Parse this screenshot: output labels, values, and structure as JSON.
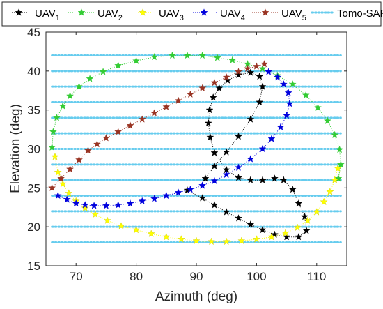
{
  "chart_data": {
    "type": "scatter",
    "xlabel": "Azimuth (deg)",
    "ylabel": "Elevation (deg)",
    "xlim": [
      65,
      115
    ],
    "ylim": [
      15,
      45
    ],
    "xticks": [
      "70",
      "80",
      "90",
      "100",
      "110"
    ],
    "yticks": [
      "15",
      "20",
      "25",
      "30",
      "35",
      "40",
      "45"
    ],
    "grid": false,
    "legend_placement": "top (outside, above plot)",
    "tomo_sar": {
      "name": "Tomo-SAR",
      "color": "#66ccee",
      "x_range": [
        66,
        114
      ],
      "y_levels": [
        18,
        20,
        22,
        24,
        26,
        28,
        30,
        32,
        34,
        36,
        38,
        40,
        42
      ]
    },
    "series": [
      {
        "name": "UAV",
        "sub": "1",
        "color": "#000000",
        "x": [
          88.5,
          91,
          93,
          95,
          97,
          99,
          101,
          103,
          105,
          107,
          108.3,
          108,
          107,
          106,
          104.5,
          103,
          101,
          99,
          97,
          95,
          93,
          92.3,
          92,
          92.2,
          92.8,
          93.8,
          95.2,
          97,
          99,
          100.5,
          101,
          100.5,
          99,
          97,
          95,
          93,
          91.5
        ],
        "y": [
          24.7,
          23.7,
          22.8,
          21.9,
          21.1,
          20.3,
          19.6,
          19.0,
          18.7,
          18.7,
          19.5,
          21.3,
          23.0,
          24.8,
          26.0,
          26.2,
          26.0,
          26.0,
          26.3,
          27.3,
          29.5,
          31.5,
          33.3,
          35.0,
          36.6,
          37.8,
          38.8,
          39.5,
          39.8,
          39.3,
          38.0,
          36.0,
          33.8,
          31.6,
          29.6,
          27.8,
          26.2
        ]
      },
      {
        "name": "UAV",
        "sub": "2",
        "color": "#33cc33",
        "x": [
          66,
          66.2,
          66.8,
          67.8,
          69,
          70.5,
          72.3,
          74.5,
          77,
          80,
          83,
          86,
          88.5,
          91,
          93.5,
          96,
          98.5,
          101,
          103.5,
          106,
          108.2,
          110.2,
          111.8,
          113,
          113.8,
          114,
          113.6
        ],
        "y": [
          30.2,
          32.2,
          34.0,
          35.5,
          36.8,
          38.0,
          39.0,
          39.9,
          40.7,
          41.3,
          41.8,
          42.0,
          42.0,
          42.0,
          41.7,
          41.4,
          40.9,
          40.3,
          39.4,
          38.3,
          36.9,
          35.3,
          33.6,
          31.8,
          29.9,
          28.0,
          26.2
        ]
      },
      {
        "name": "UAV",
        "sub": "3",
        "color": "#ffff00",
        "x": [
          66.5,
          67,
          67.8,
          68.8,
          70,
          71.5,
          73.2,
          75.2,
          77.5,
          80,
          82.5,
          85,
          87.5,
          90,
          92.5,
          95,
          97.5,
          100,
          102.5,
          104.8,
          106.8,
          108.5,
          110,
          111.2,
          112.2,
          113,
          113.5
        ],
        "y": [
          29.0,
          27.0,
          25.5,
          24.3,
          23.3,
          22.4,
          21.6,
          20.8,
          20.1,
          19.6,
          19.1,
          18.7,
          18.4,
          18.2,
          18.1,
          18.1,
          18.2,
          18.4,
          18.7,
          19.2,
          19.9,
          20.8,
          21.9,
          23.2,
          24.5,
          26.0,
          27.5
        ]
      },
      {
        "name": "UAV",
        "sub": "4",
        "color": "#0000dd",
        "x": [
          67,
          68.5,
          70,
          71.5,
          73,
          75,
          77,
          79,
          81,
          83,
          85,
          87,
          89,
          91,
          93,
          95,
          97,
          99,
          101,
          102.5,
          104,
          105,
          105.5,
          105.3,
          104.5,
          103.5,
          102
        ],
        "y": [
          24.0,
          23.5,
          23.0,
          22.8,
          22.7,
          22.7,
          22.8,
          23.0,
          23.3,
          23.6,
          24.0,
          24.4,
          24.8,
          25.3,
          25.9,
          26.7,
          27.6,
          28.7,
          30.0,
          31.3,
          32.8,
          34.3,
          35.8,
          37.2,
          38.3,
          39.2,
          39.9
        ]
      },
      {
        "name": "UAV",
        "sub": "5",
        "color": "#993322",
        "x": [
          66,
          67.5,
          69,
          70.5,
          72,
          73.5,
          75,
          77,
          79,
          81,
          83,
          85,
          87,
          89,
          91,
          93,
          95,
          97,
          98.5,
          100,
          101.3
        ],
        "y": [
          25.0,
          26.2,
          27.4,
          28.6,
          29.8,
          30.6,
          31.4,
          32.2,
          33.0,
          33.8,
          34.6,
          35.4,
          36.2,
          37.0,
          37.8,
          38.5,
          39.2,
          39.9,
          40.3,
          40.6,
          40.9
        ]
      }
    ]
  }
}
